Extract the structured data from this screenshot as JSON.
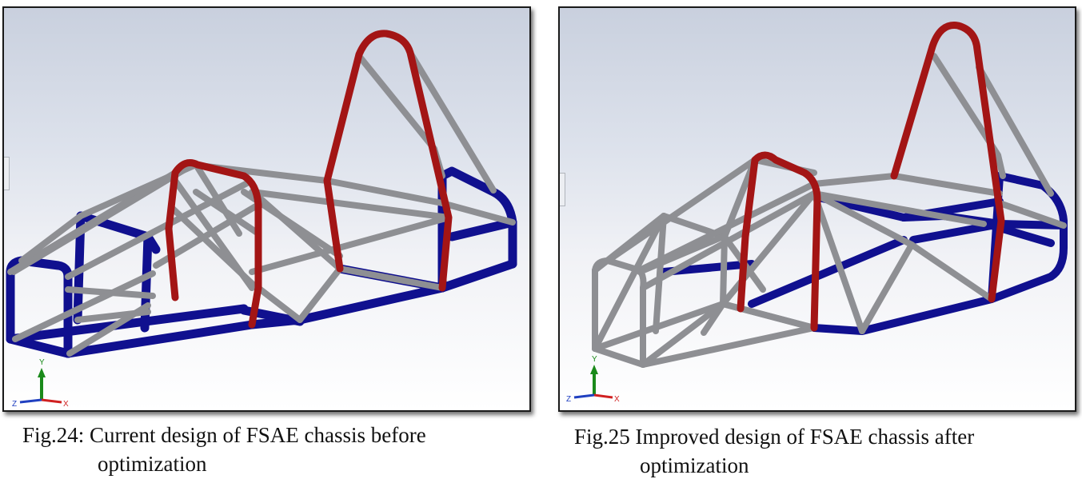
{
  "figures": [
    {
      "caption_line1": "Fig.24: Current design of FSAE chassis before",
      "caption_line2": "optimization",
      "tube_colors": {
        "main_hoop": "#a31515",
        "base": "#10108f",
        "bracing": "#8e8f93"
      }
    },
    {
      "caption_line1": "Fig.25 Improved design of FSAE chassis after",
      "caption_line2": "optimization",
      "tube_colors": {
        "main_hoop": "#a31515",
        "base": "#10108f",
        "bracing": "#8e8f93"
      }
    }
  ],
  "triad": {
    "x": "X",
    "y": "Y",
    "z": "Z",
    "x_color": "#d02020",
    "y_color": "#1a8a1a",
    "z_color": "#2040c0"
  }
}
